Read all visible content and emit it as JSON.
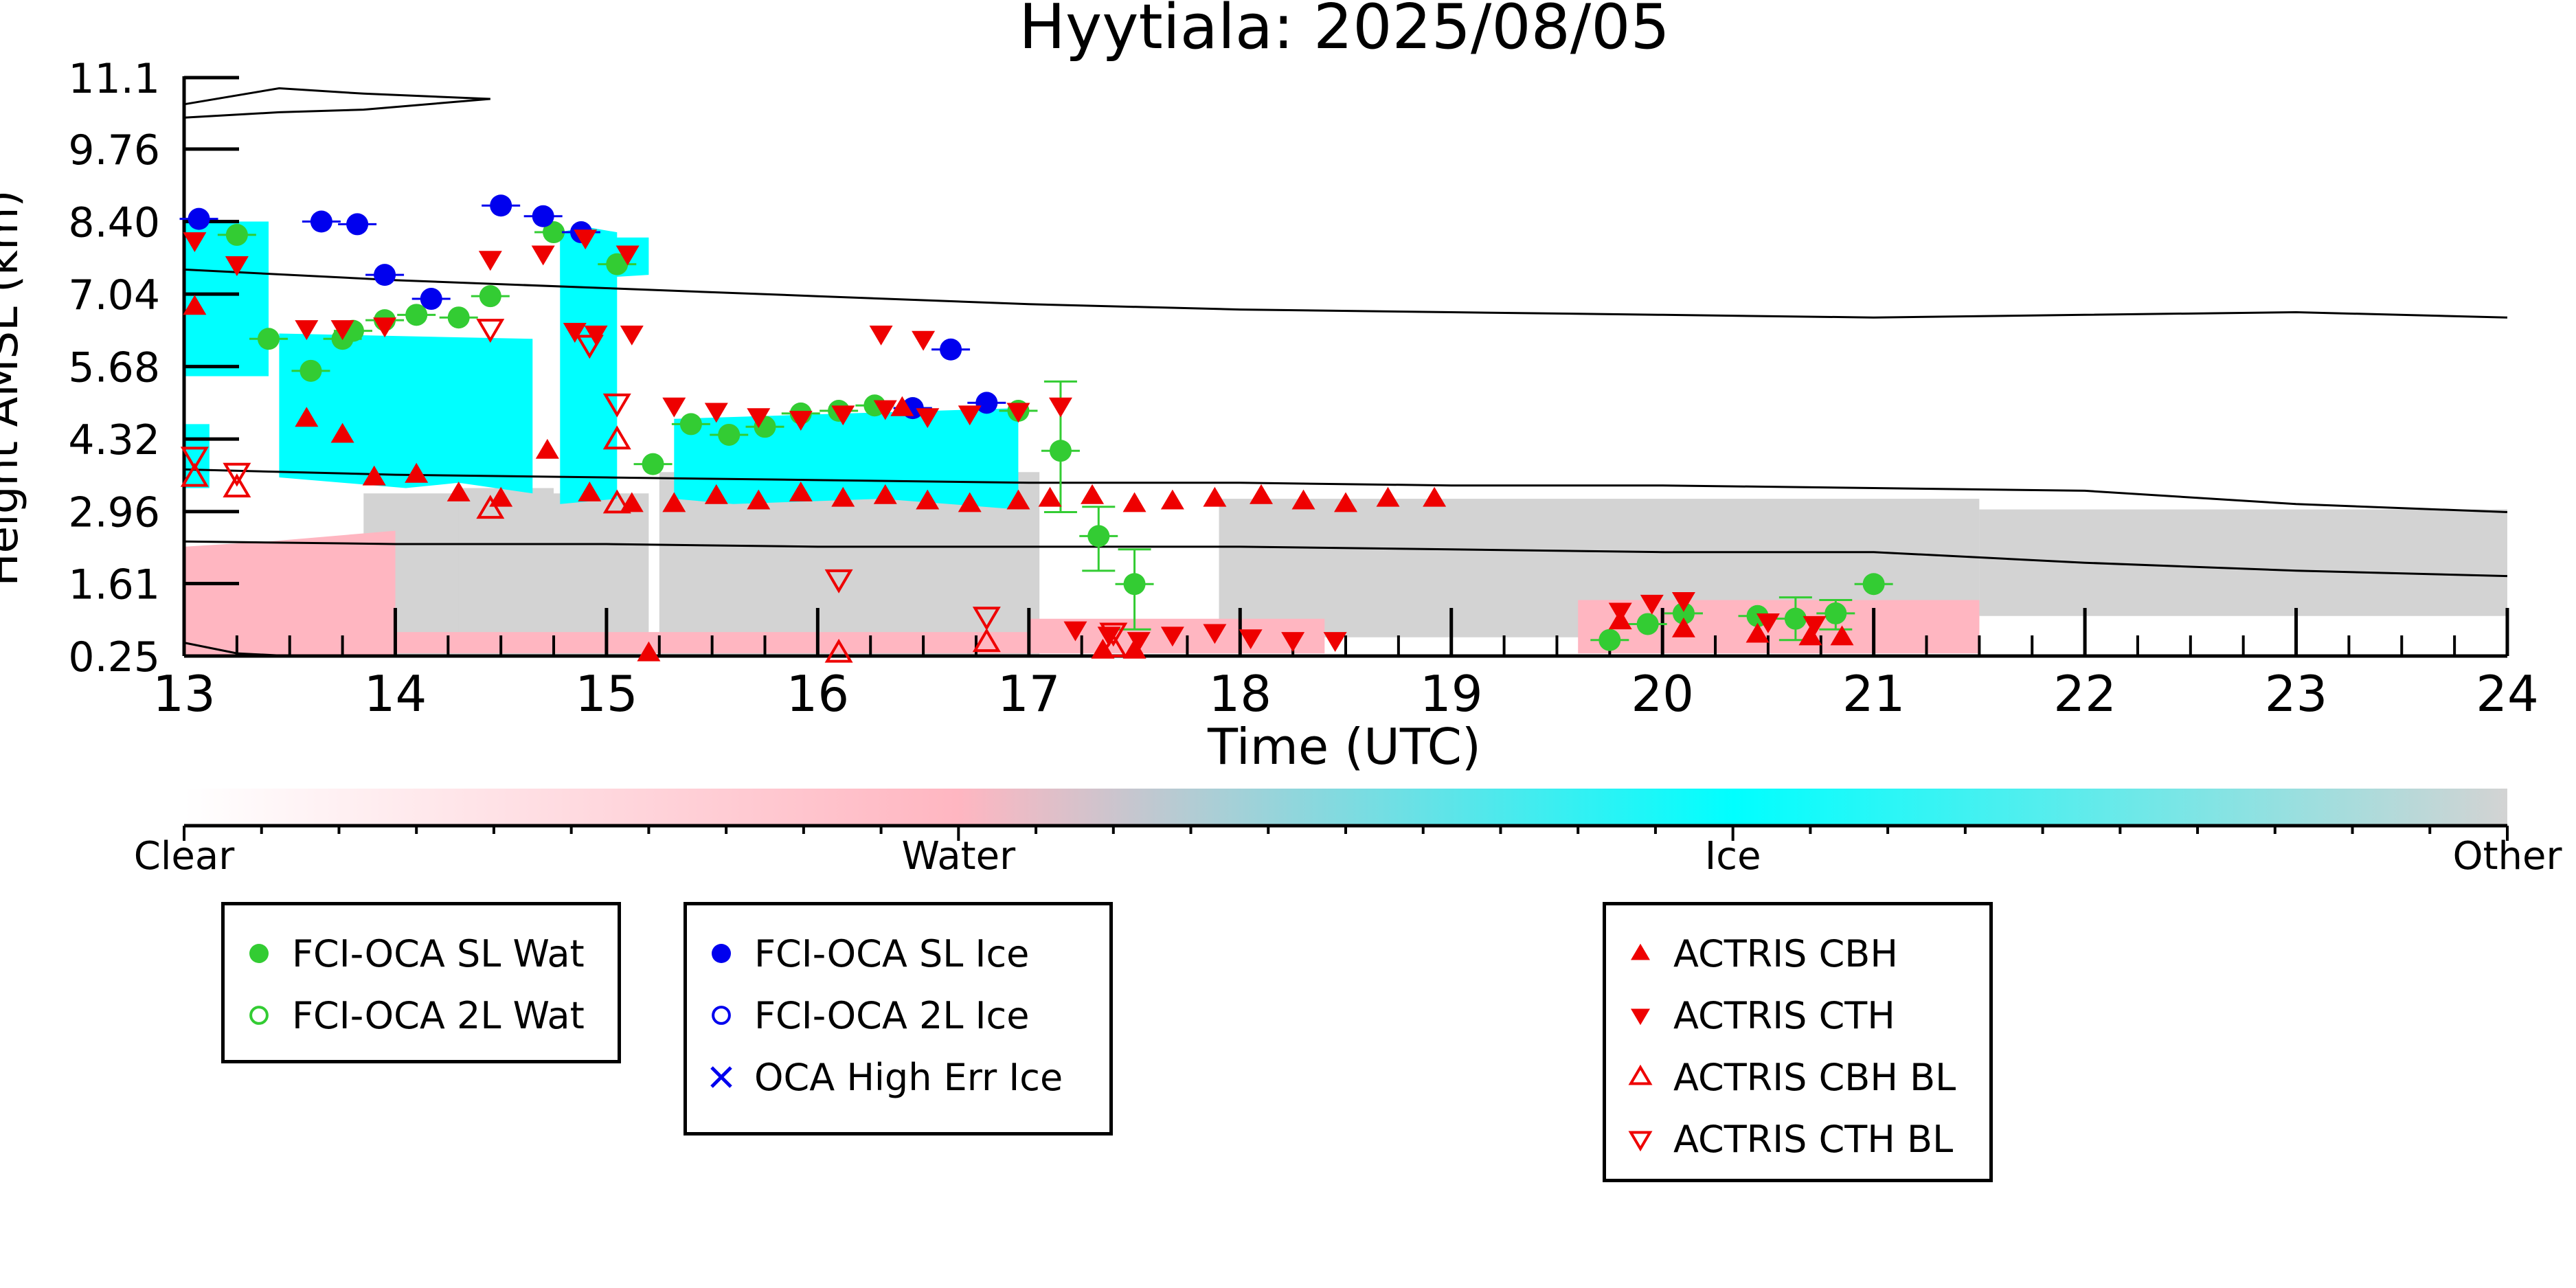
{
  "chart_data": {
    "type": "scatter",
    "title": "Hyytiala: 2025/08/05",
    "xlabel": "Time (UTC)",
    "ylabel": "Height AMSL (km)",
    "xlim": [
      13,
      24
    ],
    "ylim": [
      0.25,
      11.1
    ],
    "x_ticks": [
      13,
      14,
      15,
      16,
      17,
      18,
      19,
      20,
      21,
      22,
      23,
      24
    ],
    "y_ticks": [
      "0.25",
      "1.61",
      "2.96",
      "4.32",
      "5.68",
      "7.04",
      "8.40",
      "9.76",
      "11.1"
    ],
    "grid": false,
    "colorbar": {
      "labels": [
        "Clear",
        "Water",
        "Ice",
        "Other"
      ],
      "colors": [
        "#ffffff",
        "#ffb6c1",
        "#00ffff",
        "#d3d3d3"
      ]
    },
    "background_classes": [
      {
        "name": "Ice",
        "color": "#00ffff"
      },
      {
        "name": "Water",
        "color": "#ffb6c1"
      },
      {
        "name": "Other",
        "color": "#d3d3d3"
      }
    ],
    "temperature_lines_km": {
      "x": [
        13,
        14,
        15,
        16,
        17,
        18,
        19,
        20,
        21,
        22,
        23,
        24
      ],
      "upper": [
        7.5,
        7.3,
        7.15,
        7.0,
        6.85,
        6.75,
        6.7,
        6.65,
        6.6,
        6.65,
        6.7,
        6.6
      ],
      "middle": [
        3.75,
        3.65,
        3.6,
        3.55,
        3.5,
        3.5,
        3.45,
        3.45,
        3.4,
        3.35,
        3.1,
        2.95
      ],
      "lower": [
        2.4,
        2.35,
        2.35,
        2.3,
        2.3,
        2.3,
        2.25,
        2.2,
        2.2,
        2.0,
        1.85,
        1.75
      ]
    },
    "series": [
      {
        "name": "FCI-OCA SL Wat",
        "marker": "filled-circle",
        "color": "#33cc33",
        "points": [
          [
            13.25,
            8.15
          ],
          [
            13.4,
            6.2
          ],
          [
            13.6,
            5.6
          ],
          [
            13.75,
            6.2
          ],
          [
            13.8,
            6.35
          ],
          [
            13.95,
            6.55
          ],
          [
            14.1,
            6.65
          ],
          [
            14.3,
            6.6
          ],
          [
            14.45,
            7.0
          ],
          [
            14.75,
            8.2
          ],
          [
            15.05,
            7.6
          ],
          [
            15.22,
            3.85
          ],
          [
            15.4,
            4.6
          ],
          [
            15.58,
            4.4
          ],
          [
            15.75,
            4.55
          ],
          [
            15.92,
            4.8
          ],
          [
            16.1,
            4.85
          ],
          [
            16.27,
            4.95
          ],
          [
            16.45,
            4.9
          ],
          [
            16.95,
            4.85
          ],
          [
            17.15,
            4.1
          ],
          [
            17.33,
            2.5
          ],
          [
            17.5,
            1.6
          ],
          [
            19.75,
            0.55
          ],
          [
            19.93,
            0.85
          ],
          [
            20.1,
            1.05
          ],
          [
            20.45,
            1.0
          ],
          [
            20.63,
            0.95
          ],
          [
            20.82,
            1.05
          ],
          [
            21.0,
            1.6
          ]
        ]
      },
      {
        "name": "FCI-OCA SL Ice",
        "marker": "filled-circle",
        "color": "#0000ee",
        "points": [
          [
            13.07,
            8.45
          ],
          [
            13.65,
            8.4
          ],
          [
            13.82,
            8.35
          ],
          [
            13.95,
            7.4
          ],
          [
            14.17,
            6.95
          ],
          [
            14.5,
            8.7
          ],
          [
            14.7,
            8.5
          ],
          [
            14.88,
            8.2
          ],
          [
            16.45,
            4.9
          ],
          [
            16.63,
            6.0
          ],
          [
            16.8,
            5.0
          ]
        ]
      },
      {
        "name": "FCI-OCA 2L Wat",
        "marker": "open-circle",
        "color": "#33cc33",
        "points": []
      },
      {
        "name": "FCI-OCA 2L Ice",
        "marker": "open-circle",
        "color": "#0000ee",
        "points": []
      },
      {
        "name": "OCA High Err Ice",
        "marker": "x",
        "color": "#0000ee",
        "points": []
      },
      {
        "name": "ACTRIS CBH",
        "marker": "up-triangle",
        "color": "#ee0000",
        "points": [
          [
            13.05,
            6.8
          ],
          [
            13.58,
            4.7
          ],
          [
            13.75,
            4.4
          ],
          [
            13.9,
            3.6
          ],
          [
            14.1,
            3.65
          ],
          [
            14.3,
            3.3
          ],
          [
            14.5,
            3.2
          ],
          [
            14.72,
            4.1
          ],
          [
            14.92,
            3.3
          ],
          [
            15.12,
            3.1
          ],
          [
            15.32,
            3.1
          ],
          [
            15.52,
            3.25
          ],
          [
            15.72,
            3.15
          ],
          [
            15.92,
            3.3
          ],
          [
            16.12,
            3.2
          ],
          [
            16.32,
            3.25
          ],
          [
            16.52,
            3.15
          ],
          [
            16.72,
            3.1
          ],
          [
            16.95,
            3.15
          ],
          [
            17.1,
            3.2
          ],
          [
            17.3,
            3.25
          ],
          [
            17.5,
            3.1
          ],
          [
            17.68,
            3.15
          ],
          [
            17.88,
            3.2
          ],
          [
            18.1,
            3.25
          ],
          [
            18.3,
            3.15
          ],
          [
            18.5,
            3.1
          ],
          [
            18.7,
            3.2
          ],
          [
            18.92,
            3.2
          ],
          [
            16.4,
            4.9
          ],
          [
            15.2,
            0.3
          ],
          [
            17.35,
            0.35
          ],
          [
            17.5,
            0.35
          ],
          [
            19.8,
            0.9
          ],
          [
            20.1,
            0.75
          ],
          [
            20.45,
            0.65
          ],
          [
            20.7,
            0.6
          ],
          [
            20.85,
            0.6
          ]
        ]
      },
      {
        "name": "ACTRIS CTH",
        "marker": "down-triangle",
        "color": "#ee0000",
        "points": [
          [
            13.05,
            8.05
          ],
          [
            13.25,
            7.6
          ],
          [
            13.58,
            6.4
          ],
          [
            13.75,
            6.4
          ],
          [
            13.95,
            6.45
          ],
          [
            14.45,
            7.7
          ],
          [
            14.7,
            7.8
          ],
          [
            14.9,
            8.1
          ],
          [
            15.1,
            7.8
          ],
          [
            14.85,
            6.35
          ],
          [
            14.95,
            6.3
          ],
          [
            15.12,
            6.3
          ],
          [
            15.32,
            4.95
          ],
          [
            15.52,
            4.85
          ],
          [
            15.72,
            4.75
          ],
          [
            15.92,
            4.7
          ],
          [
            16.12,
            4.8
          ],
          [
            16.32,
            4.9
          ],
          [
            16.52,
            4.75
          ],
          [
            16.72,
            4.8
          ],
          [
            16.95,
            4.85
          ],
          [
            17.15,
            4.95
          ],
          [
            16.3,
            6.3
          ],
          [
            16.5,
            6.2
          ],
          [
            17.22,
            0.75
          ],
          [
            17.38,
            0.65
          ],
          [
            17.52,
            0.55
          ],
          [
            17.68,
            0.65
          ],
          [
            17.88,
            0.7
          ],
          [
            18.05,
            0.6
          ],
          [
            18.25,
            0.55
          ],
          [
            18.45,
            0.55
          ],
          [
            19.8,
            1.1
          ],
          [
            19.95,
            1.25
          ],
          [
            20.1,
            1.3
          ],
          [
            20.5,
            0.9
          ],
          [
            20.72,
            0.85
          ]
        ]
      },
      {
        "name": "ACTRIS CBH BL",
        "marker": "open-up-triangle",
        "color": "#ee0000",
        "points": [
          [
            13.05,
            3.6
          ],
          [
            13.25,
            3.4
          ],
          [
            14.45,
            3.0
          ],
          [
            15.05,
            3.1
          ],
          [
            15.05,
            4.3
          ],
          [
            16.1,
            0.3
          ],
          [
            16.8,
            0.5
          ],
          [
            17.4,
            0.4
          ]
        ]
      },
      {
        "name": "ACTRIS CTH BL",
        "marker": "open-down-triangle",
        "color": "#ee0000",
        "points": [
          [
            13.05,
            4.0
          ],
          [
            13.25,
            3.7
          ],
          [
            14.45,
            6.4
          ],
          [
            14.92,
            6.1
          ],
          [
            15.05,
            5.0
          ],
          [
            16.1,
            1.7
          ],
          [
            16.8,
            1.0
          ],
          [
            17.4,
            0.7
          ]
        ]
      }
    ],
    "error_bars": [
      {
        "x": 17.15,
        "y": 4.1,
        "low": 2.95,
        "high": 5.4
      },
      {
        "x": 17.33,
        "y": 2.5,
        "low": 1.85,
        "high": 3.05
      },
      {
        "x": 17.5,
        "y": 1.6,
        "low": 0.75,
        "high": 2.25
      },
      {
        "x": 20.63,
        "y": 0.95,
        "low": 0.55,
        "high": 1.35
      },
      {
        "x": 20.82,
        "y": 1.05,
        "low": 0.75,
        "high": 1.3
      }
    ]
  },
  "legends": [
    {
      "entries": [
        {
          "label": "FCI-OCA SL Wat",
          "symbol": "filled-circle",
          "color": "#33cc33"
        },
        {
          "label": "FCI-OCA 2L Wat",
          "symbol": "open-circle",
          "color": "#33cc33"
        }
      ]
    },
    {
      "entries": [
        {
          "label": "FCI-OCA SL Ice",
          "symbol": "filled-circle",
          "color": "#0000ee"
        },
        {
          "label": "FCI-OCA 2L Ice",
          "symbol": "open-circle",
          "color": "#0000ee"
        },
        {
          "label": "OCA High Err Ice",
          "symbol": "x",
          "color": "#0000ee"
        }
      ]
    },
    {
      "entries": [
        {
          "label": "ACTRIS CBH",
          "symbol": "up-triangle",
          "color": "#ee0000"
        },
        {
          "label": "ACTRIS CTH",
          "symbol": "down-triangle",
          "color": "#ee0000"
        },
        {
          "label": "ACTRIS CBH BL",
          "symbol": "open-up-triangle",
          "color": "#ee0000"
        },
        {
          "label": "ACTRIS CTH BL",
          "symbol": "open-down-triangle",
          "color": "#ee0000"
        }
      ]
    }
  ]
}
